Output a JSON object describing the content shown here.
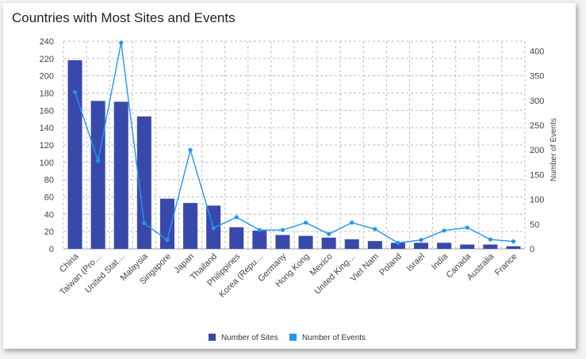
{
  "chart_data": {
    "type": "bar",
    "title": "Countries with Most Sites and Events",
    "categories": [
      "China",
      "Taiwan (Pro…",
      "United Stat…",
      "Malaysia",
      "Singapore",
      "Japan",
      "Thailand",
      "Philippines",
      "Korea (Repu…",
      "Germany",
      "Hong Kong",
      "Mexico",
      "United King…",
      "Viet Nam",
      "Poland",
      "Israel",
      "India",
      "Canada",
      "Australia",
      "France"
    ],
    "series": [
      {
        "name": "Number of Sites",
        "type": "bar",
        "axis": "left",
        "color": "#3949ab",
        "values": [
          218,
          171,
          170,
          153,
          58,
          53,
          50,
          25,
          21,
          16,
          15,
          13,
          11,
          9,
          7,
          7,
          7,
          5,
          5,
          3
        ]
      },
      {
        "name": "Number of Events",
        "type": "line",
        "axis": "right",
        "color": "#2196f3",
        "values": [
          317,
          178,
          417,
          52,
          18,
          200,
          42,
          64,
          38,
          38,
          53,
          30,
          53,
          40,
          12,
          18,
          37,
          43,
          19,
          15
        ]
      }
    ],
    "ylim": [
      0,
      240
    ],
    "yticks": [
      0,
      20,
      40,
      60,
      80,
      100,
      120,
      140,
      160,
      180,
      200,
      220,
      240
    ],
    "y2lim": [
      0,
      420
    ],
    "y2ticks": [
      0,
      50,
      100,
      150,
      200,
      250,
      300,
      350,
      400
    ],
    "xlabel": "",
    "ylabel": "",
    "y2label": "Number of Events",
    "grid": true,
    "legend": "bottom"
  }
}
